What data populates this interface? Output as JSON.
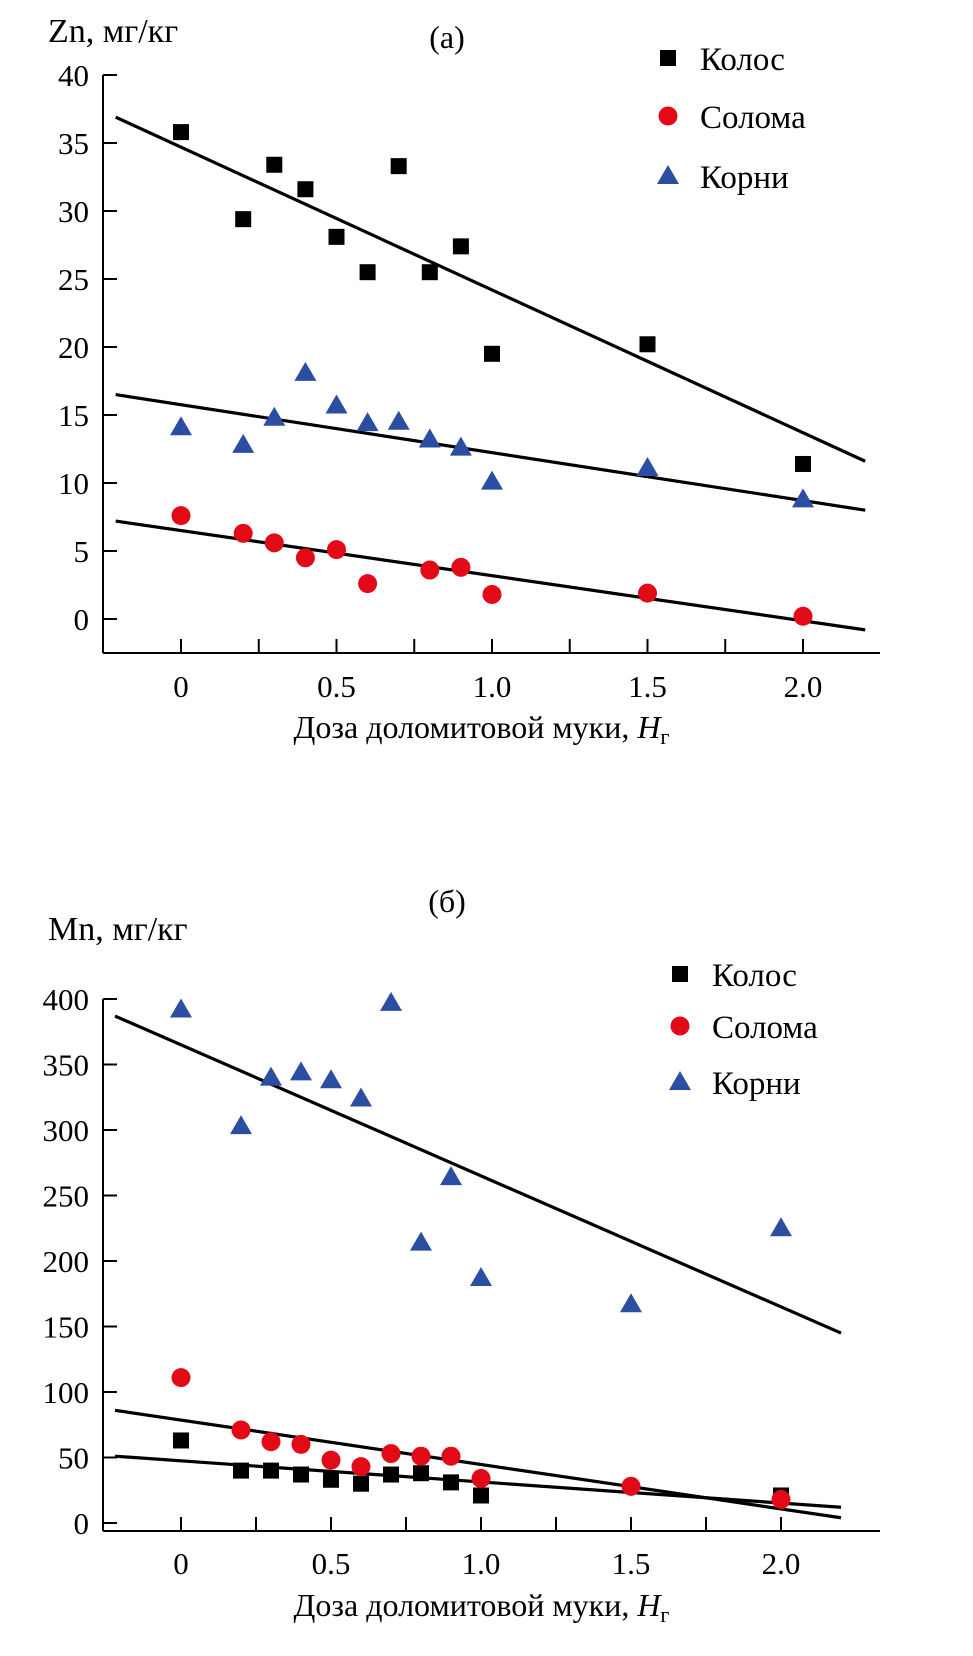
{
  "colors": {
    "Колос": "#000000",
    "Солома": "#e30a17",
    "Корни": "#2b4ea2",
    "line": "#000000"
  },
  "chart_data": [
    {
      "type": "scatter",
      "panel_label": "(а)",
      "ylabel": "Zn, мг/кг",
      "xlabel": "Доза доломитовой муки, ",
      "xlabel_italic": "Н",
      "xlabel_sub": "г",
      "xlim": [
        -0.25,
        2.25
      ],
      "ylim": [
        -2.6,
        40
      ],
      "xticks": [
        0,
        0.5,
        1.0,
        1.5,
        2.0
      ],
      "xtick_labels": [
        "0",
        "0.5",
        "1.0",
        "1.5",
        "2.0"
      ],
      "yticks": [
        0,
        5,
        10,
        15,
        20,
        25,
        30,
        35,
        40
      ],
      "ytick_labels": [
        "0",
        "5",
        "10",
        "15",
        "20",
        "25",
        "30",
        "35",
        "40"
      ],
      "legend": "top-right",
      "series": [
        {
          "name": "Колос",
          "marker": "square",
          "x": [
            0,
            0.2,
            0.3,
            0.4,
            0.5,
            0.6,
            0.7,
            0.8,
            0.9,
            1.0,
            1.5,
            2.0
          ],
          "y": [
            35.8,
            29.4,
            33.4,
            31.6,
            28.1,
            25.5,
            33.3,
            25.5,
            27.4,
            19.5,
            20.2,
            11.4
          ],
          "trend": [
            [
              -0.21,
              36.9
            ],
            [
              2.2,
              11.6
            ]
          ]
        },
        {
          "name": "Солома",
          "marker": "circle",
          "x": [
            0,
            0.2,
            0.3,
            0.4,
            0.5,
            0.6,
            0.8,
            0.9,
            1.0,
            1.5,
            2.0
          ],
          "y": [
            7.6,
            6.3,
            5.6,
            4.5,
            5.1,
            2.6,
            3.6,
            3.8,
            1.8,
            1.9,
            0.2
          ],
          "trend": [
            [
              -0.21,
              7.2
            ],
            [
              2.2,
              -0.8
            ]
          ]
        },
        {
          "name": "Корни",
          "marker": "triangle",
          "x": [
            0,
            0.2,
            0.3,
            0.4,
            0.5,
            0.6,
            0.7,
            0.8,
            0.9,
            1.0,
            1.5,
            2.0
          ],
          "y": [
            14.1,
            12.8,
            14.8,
            18.1,
            15.7,
            14.4,
            14.5,
            13.2,
            12.6,
            10.1,
            11.1,
            8.8
          ],
          "trend": [
            [
              -0.21,
              16.5
            ],
            [
              2.2,
              8.0
            ]
          ]
        }
      ]
    },
    {
      "type": "scatter",
      "panel_label": "(б)",
      "ylabel": "Mn, мг/кг",
      "xlabel": "Доза доломитовой муки, ",
      "xlabel_italic": "Н",
      "xlabel_sub": "г",
      "xlim": [
        -0.26,
        2.33
      ],
      "ylim": [
        -6,
        400
      ],
      "xticks": [
        0,
        0.5,
        1.0,
        1.5,
        2.0
      ],
      "xtick_labels": [
        "0",
        "0.5",
        "1.0",
        "1.5",
        "2.0"
      ],
      "yticks": [
        0,
        50,
        100,
        150,
        200,
        250,
        300,
        350,
        400
      ],
      "ytick_labels": [
        "0",
        "50",
        "100",
        "150",
        "200",
        "250",
        "300",
        "350",
        "400"
      ],
      "legend": "top-right",
      "series": [
        {
          "name": "Колос",
          "marker": "square",
          "x": [
            0,
            0.2,
            0.3,
            0.4,
            0.5,
            0.6,
            0.7,
            0.8,
            0.9,
            1.0,
            2.0
          ],
          "y": [
            63,
            40,
            40,
            37,
            33,
            30,
            37,
            38,
            31,
            21,
            21
          ],
          "trend": [
            [
              -0.22,
              51
            ],
            [
              2.2,
              12
            ]
          ]
        },
        {
          "name": "Солома",
          "marker": "circle",
          "x": [
            0,
            0.2,
            0.3,
            0.4,
            0.5,
            0.6,
            0.7,
            0.8,
            0.9,
            1.0,
            1.5,
            2.0
          ],
          "y": [
            111,
            71,
            62,
            60,
            48,
            43,
            53,
            51,
            51,
            34,
            28,
            18
          ],
          "trend": [
            [
              -0.22,
              86
            ],
            [
              2.2,
              4
            ]
          ]
        },
        {
          "name": "Корни",
          "marker": "triangle",
          "x": [
            0,
            0.2,
            0.3,
            0.4,
            0.5,
            0.6,
            0.7,
            0.8,
            0.9,
            1.0,
            1.5,
            2.0
          ],
          "y": [
            392,
            303,
            340,
            344,
            338,
            324,
            397,
            214,
            264,
            187,
            167,
            225
          ],
          "trend": [
            [
              -0.22,
              387
            ],
            [
              2.2,
              145
            ]
          ]
        }
      ]
    }
  ]
}
